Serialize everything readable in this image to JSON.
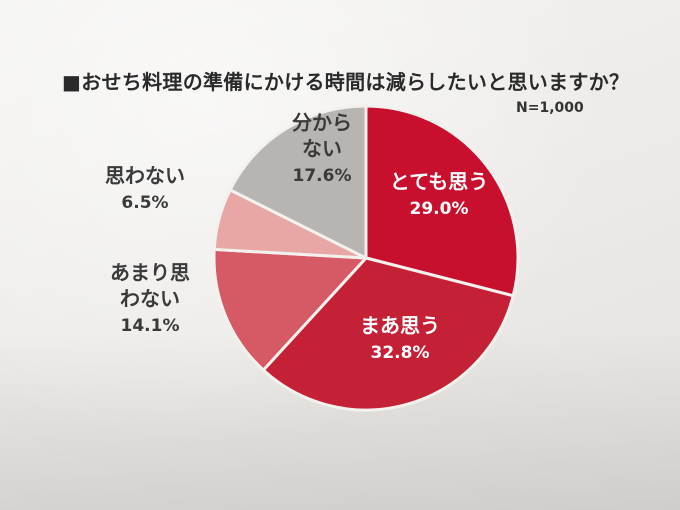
{
  "title": "■おせち料理の準備にかける時間は減らしたいと思いますか？",
  "sample_size": "N=1,000",
  "chart_data": {
    "type": "pie",
    "title": "■おせち料理の準備にかける時間は減らしたいと思いますか？",
    "categories": [
      "とても思う",
      "まあ思う",
      "あまり思わない",
      "思わない",
      "分からない"
    ],
    "category_lines": [
      [
        "とても思う"
      ],
      [
        "まあ思う"
      ],
      [
        "あまり思",
        "わない"
      ],
      [
        "思わない"
      ],
      [
        "分から",
        "ない"
      ]
    ],
    "values": [
      29.0,
      32.8,
      14.1,
      6.5,
      17.6
    ],
    "value_labels": [
      "29.0%",
      "32.8%",
      "14.1%",
      "6.5%",
      "17.6%"
    ],
    "colors": [
      "#c8102e",
      "#c42036",
      "#d65a65",
      "#e8a7a5",
      "#b7b4b1"
    ],
    "label_colors": [
      "#ffffff",
      "#ffffff",
      "#3a3a3a",
      "#3a3a3a",
      "#3a3a3a"
    ],
    "start": "12 o'clock",
    "direction": "clockwise",
    "legend": "none"
  }
}
